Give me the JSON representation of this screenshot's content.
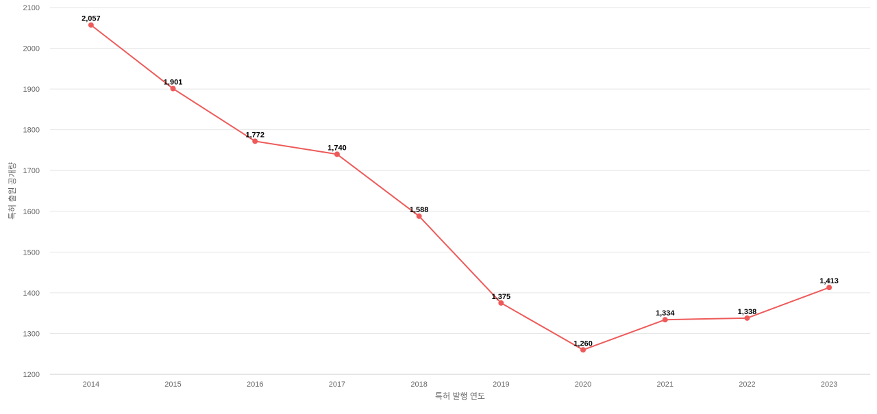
{
  "chart_data": {
    "type": "line",
    "title": "",
    "xlabel": "특허 발행 연도",
    "ylabel": "특허 출원 공개량",
    "ylim": [
      1200,
      2100
    ],
    "yticks": [
      1200,
      1300,
      1400,
      1500,
      1600,
      1700,
      1800,
      1900,
      2000,
      2100
    ],
    "categories": [
      "2014",
      "2015",
      "2016",
      "2017",
      "2018",
      "2019",
      "2020",
      "2021",
      "2022",
      "2023"
    ],
    "series": [
      {
        "values": [
          2057,
          1901,
          1772,
          1740,
          1588,
          1375,
          1260,
          1334,
          1338,
          1413
        ],
        "labels": [
          "2,057",
          "1,901",
          "1,772",
          "1,740",
          "1,588",
          "1,375",
          "1,260",
          "1,334",
          "1,338",
          "1,413"
        ],
        "color": "#ee5a5a"
      }
    ],
    "grid": true,
    "legend": "none"
  }
}
